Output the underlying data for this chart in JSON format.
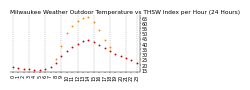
{
  "title": "Milwaukee Weather Outdoor Temperature vs THSW Index per Hour (24 Hours)",
  "hours": [
    0,
    1,
    2,
    3,
    4,
    5,
    6,
    7,
    8,
    9,
    10,
    11,
    12,
    13,
    14,
    15,
    16,
    17,
    18,
    19,
    20,
    21,
    22,
    23
  ],
  "temp": [
    18,
    17,
    16,
    16,
    15,
    15,
    16,
    18,
    22,
    28,
    33,
    37,
    40,
    43,
    44,
    42,
    39,
    36,
    33,
    30,
    28,
    26,
    24,
    22
  ],
  "thsw": [
    null,
    null,
    null,
    null,
    null,
    null,
    null,
    null,
    25,
    38,
    50,
    57,
    62,
    65,
    66,
    61,
    53,
    44,
    37,
    null,
    null,
    null,
    null,
    null
  ],
  "temp_color": "#cc0000",
  "thsw_color": "#ff8800",
  "bg_color": "#ffffff",
  "grid_color": "#999999",
  "ylim": [
    13,
    68
  ],
  "yticks": [
    15,
    20,
    25,
    30,
    35,
    40,
    45,
    50,
    55,
    60,
    65
  ],
  "vgrid_x": [
    0,
    3,
    6,
    9,
    12,
    15,
    18,
    21,
    23
  ],
  "xtick_hours": [
    0,
    1,
    2,
    3,
    4,
    5,
    6,
    7,
    8,
    9,
    10,
    11,
    12,
    13,
    14,
    15,
    16,
    17,
    18,
    19,
    20,
    21,
    22,
    23
  ],
  "title_fontsize": 4.2,
  "tick_fontsize": 3.5,
  "marker_size": 1.8
}
